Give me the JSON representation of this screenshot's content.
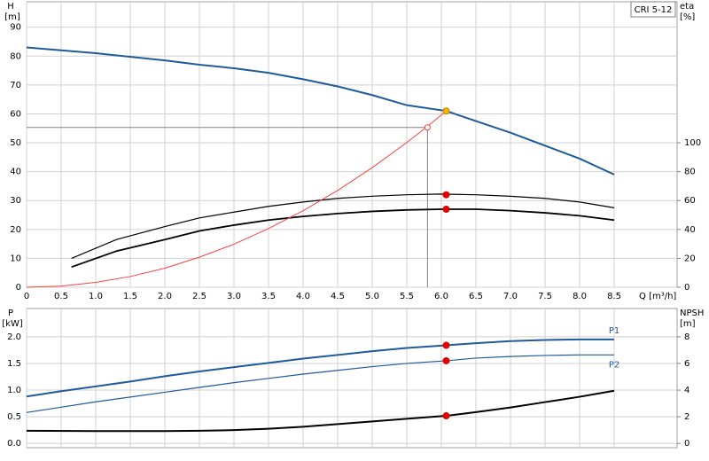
{
  "chart_data": [
    {
      "type": "line",
      "ylabel": "H",
      "yunit": "[m]",
      "y2label": "eta",
      "y2unit": "[%]",
      "badge": "CRI 5-12",
      "xlabel": "Q [m³/h]",
      "xlim": [
        0,
        9.41
      ],
      "ylim": [
        0,
        98.8
      ],
      "y2lim": [
        0,
        197.6
      ],
      "grid": true,
      "xticks": [
        0,
        0.5,
        {
          "value": 1,
          "label": "1.0"
        },
        1.5,
        {
          "value": 2,
          "label": "2.0"
        },
        2.5,
        {
          "value": 3,
          "label": "3.0"
        },
        3.5,
        {
          "value": 4,
          "label": "4.0"
        },
        4.5,
        {
          "value": 5,
          "label": "5.0"
        },
        5.5,
        {
          "value": 6,
          "label": "6.0"
        },
        6.5,
        {
          "value": 7,
          "label": "7.0"
        },
        7.5,
        {
          "value": 8,
          "label": "8.0"
        },
        8.5
      ],
      "yticks": [
        0,
        10,
        20,
        30,
        40,
        50,
        60,
        70,
        80,
        90
      ],
      "y2ticks": [
        0,
        20,
        40,
        60,
        80,
        100
      ],
      "series": [
        {
          "color": "#1f5b9a",
          "width": 2,
          "x": [
            0,
            0.5,
            1,
            2,
            2.5,
            3,
            3.5,
            4,
            4.5,
            5,
            5.5,
            6.07,
            6.5,
            7,
            7.5,
            8,
            8.5
          ],
          "values": [
            83,
            82,
            81,
            78.5,
            77,
            75.8,
            74.2,
            72,
            69.5,
            66.5,
            63,
            61,
            57.5,
            53.5,
            49,
            44.5,
            39
          ]
        },
        {
          "color": "#000000",
          "width": 1.2,
          "axis": "y2",
          "x": [
            0.65,
            1.3,
            2,
            2.5,
            3,
            3.5,
            4,
            4.5,
            5,
            5.5,
            6,
            6.5,
            7,
            7.5,
            8,
            8.5
          ],
          "values": [
            20,
            33,
            42,
            48,
            52,
            56,
            59,
            61.5,
            63,
            64,
            64.5,
            64,
            63,
            61.5,
            59,
            55
          ]
        },
        {
          "color": "#000000",
          "width": 1.8,
          "axis": "y2",
          "x": [
            0.65,
            1.3,
            2,
            2.5,
            3,
            3.5,
            4,
            4.5,
            5,
            5.5,
            6,
            6.5,
            7,
            7.5,
            8,
            8.5
          ],
          "values": [
            14,
            25,
            33,
            39,
            43,
            46.5,
            49,
            51,
            52.5,
            53.5,
            54,
            54,
            53,
            51.5,
            49.5,
            46.5
          ]
        },
        {
          "color": "#ff4040",
          "width": 1,
          "x": [
            0,
            0.5,
            1,
            1.5,
            2,
            2.5,
            3,
            3.5,
            4,
            4.5,
            5,
            5.5,
            5.8,
            6.07
          ],
          "values": [
            0,
            0.4,
            1.7,
            3.7,
            6.6,
            10.4,
            14.9,
            20.3,
            26.5,
            33.5,
            41.4,
            50.1,
            55.7,
            61
          ]
        }
      ],
      "guide": {
        "x": 5.8,
        "y": 55.3,
        "color": "#808080"
      },
      "markers": [
        {
          "x": 5.8,
          "y": 55.3,
          "color": "#ff4040",
          "hollow": true
        },
        {
          "x": 6.07,
          "y": 61,
          "color": "#f5b800"
        },
        {
          "x": 6.07,
          "y": 64,
          "axis": "y2",
          "color": "#e00000"
        },
        {
          "x": 6.07,
          "y": 54,
          "axis": "y2",
          "color": "#e00000"
        }
      ]
    },
    {
      "type": "line",
      "ylabel": "P",
      "yunit": "[kW]",
      "y2label": "NPSH",
      "y2unit": "[m]",
      "xlim": [
        0,
        9.41
      ],
      "ylim": [
        -0.08,
        2.53
      ],
      "y2lim": [
        -0.32,
        10.12
      ],
      "grid": true,
      "xticks": [
        0,
        0.5,
        1,
        1.5,
        2,
        2.5,
        3,
        3.5,
        4,
        4.5,
        5,
        5.5,
        6,
        6.5,
        7,
        7.5,
        8,
        8.5
      ],
      "yticks": [
        {
          "value": 0,
          "label": "0.0"
        },
        0.5,
        {
          "value": 1,
          "label": "1.0"
        },
        1.5,
        {
          "value": 2,
          "label": "2.0"
        }
      ],
      "y2ticks": [
        0,
        2,
        4,
        6,
        8
      ],
      "series": [
        {
          "name": "P1",
          "color": "#1f5b9a",
          "width": 2,
          "x": [
            0,
            0.5,
            1,
            1.5,
            2,
            2.5,
            3,
            3.5,
            4,
            4.5,
            5,
            5.5,
            6.07,
            6.5,
            7,
            7.5,
            8,
            8.5
          ],
          "values": [
            0.88,
            0.98,
            1.07,
            1.16,
            1.26,
            1.35,
            1.43,
            1.51,
            1.59,
            1.66,
            1.73,
            1.79,
            1.84,
            1.88,
            1.92,
            1.94,
            1.95,
            1.95
          ]
        },
        {
          "name": "P2",
          "color": "#1f5b9a",
          "width": 1.2,
          "x": [
            0,
            0.5,
            1,
            1.5,
            2,
            2.5,
            3,
            3.5,
            4,
            4.5,
            5,
            5.5,
            6.07,
            6.5,
            7,
            7.5,
            8,
            8.5
          ],
          "values": [
            0.58,
            0.68,
            0.78,
            0.87,
            0.96,
            1.05,
            1.14,
            1.22,
            1.3,
            1.37,
            1.44,
            1.5,
            1.55,
            1.6,
            1.63,
            1.65,
            1.66,
            1.66
          ]
        },
        {
          "color": "#000000",
          "width": 2,
          "axis": "y2",
          "x": [
            0,
            1,
            2,
            2.5,
            3,
            3.5,
            4,
            4.5,
            5,
            5.5,
            6.07,
            6.5,
            7,
            7.5,
            8,
            8.5
          ],
          "values": [
            0.95,
            0.93,
            0.93,
            0.95,
            1,
            1.1,
            1.25,
            1.45,
            1.65,
            1.85,
            2.07,
            2.35,
            2.7,
            3.1,
            3.5,
            3.95
          ]
        }
      ],
      "markers": [
        {
          "x": 6.07,
          "y": 1.84,
          "color": "#e00000"
        },
        {
          "x": 6.07,
          "y": 1.55,
          "color": "#e00000"
        },
        {
          "x": 6.07,
          "y": 2.07,
          "axis": "y2",
          "color": "#e00000"
        }
      ]
    }
  ]
}
